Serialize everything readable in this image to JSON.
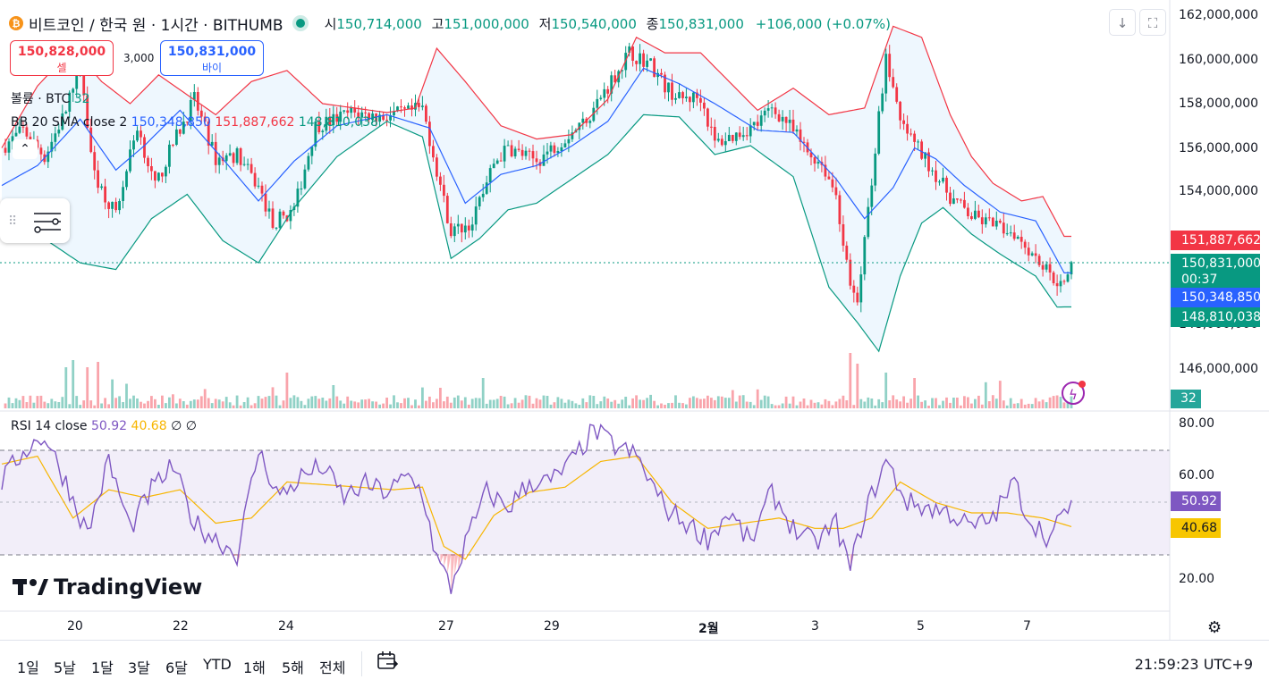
{
  "header": {
    "coin_icon": "bitcoin-icon",
    "title": "비트코인 / 한국 원 · 1시간 · BITHUMB",
    "open_label": "시",
    "open": "150,714,000",
    "high_label": "고",
    "high": "151,000,000",
    "low_label": "저",
    "low": "150,540,000",
    "close_label": "종",
    "close": "150,831,000",
    "change": "+106,000 (+0.07%)"
  },
  "trade": {
    "sell_price": "150,828,000",
    "sell_label": "셀",
    "buy_price": "150,831,000",
    "buy_label": "바이",
    "spread": "3,000"
  },
  "legend": {
    "volume_label": "볼륨 · BTC",
    "volume_value": "32",
    "bb_label": "BB 20 SMA close 2",
    "bb_basis": "150,348,850",
    "bb_upper": "151,887,662",
    "bb_lower": "148,810,038",
    "rsi_label": "RSI 14 close",
    "rsi_value": "50.92",
    "rsi_ma": "40.68",
    "rsi_e1": "∅",
    "rsi_e2": "∅"
  },
  "price_axis": {
    "labels": [
      "162,000,000",
      "160,000,000",
      "158,000,000",
      "156,000,000",
      "154,000,000",
      "146,000,000"
    ],
    "partial": "148,000,000"
  },
  "price_tags": {
    "upper": "151,887,662",
    "last": "150,831,000",
    "countdown": "00:37",
    "basis": "150,348,850",
    "lower": "148,810,038",
    "volume": "32"
  },
  "rsi_axis": {
    "labels": [
      "80.00",
      "60.00",
      "20.00"
    ],
    "value": "50.92",
    "ma": "40.68"
  },
  "time_axis": [
    "20",
    "22",
    "24",
    "27",
    "29",
    "2월",
    "3",
    "5",
    "7"
  ],
  "logo": "TradingView",
  "toolbar": {
    "ranges": [
      "1일",
      "5날",
      "1달",
      "3달",
      "6달",
      "YTD",
      "1해",
      "5해",
      "전체"
    ],
    "clock": "21:59:23 UTC+9"
  },
  "colors": {
    "up": "#089981",
    "down": "#f23645",
    "basis": "#2962ff",
    "rsi": "#7e57c2",
    "rsi_ma": "#f7b500"
  },
  "chart_data": {
    "type": "candlestick",
    "symbol": "BTC/KRW",
    "interval": "1h",
    "exchange": "BITHUMB",
    "price_range": [
      144500000,
      162500000
    ],
    "rsi_range": [
      12,
      85
    ],
    "rsi_bands": [
      70,
      30
    ],
    "anchors": {
      "close": [
        [
          0,
          156000000
        ],
        [
          6,
          156800000
        ],
        [
          12,
          155600000
        ],
        [
          18,
          157700000
        ],
        [
          22,
          159500000
        ],
        [
          26,
          154700000
        ],
        [
          32,
          153000000
        ],
        [
          38,
          157000000
        ],
        [
          43,
          154200000
        ],
        [
          48,
          156200000
        ],
        [
          54,
          158200000
        ],
        [
          60,
          155500000
        ],
        [
          66,
          155700000
        ],
        [
          72,
          154200000
        ],
        [
          76,
          152600000
        ],
        [
          82,
          153200000
        ],
        [
          88,
          157000000
        ],
        [
          92,
          157200000
        ],
        [
          98,
          157600000
        ],
        [
          106,
          157400000
        ],
        [
          114,
          157600000
        ],
        [
          118,
          157800000
        ],
        [
          122,
          155000000
        ],
        [
          126,
          152200000
        ],
        [
          132,
          152600000
        ],
        [
          138,
          155300000
        ],
        [
          142,
          156000000
        ],
        [
          150,
          155400000
        ],
        [
          156,
          156200000
        ],
        [
          164,
          157300000
        ],
        [
          170,
          158800000
        ],
        [
          176,
          160300000
        ],
        [
          182,
          159800000
        ],
        [
          186,
          158800000
        ],
        [
          190,
          158200000
        ],
        [
          196,
          158300000
        ],
        [
          200,
          156200000
        ],
        [
          206,
          156600000
        ],
        [
          212,
          157100000
        ],
        [
          216,
          157800000
        ],
        [
          220,
          157200000
        ],
        [
          226,
          155800000
        ],
        [
          230,
          155300000
        ],
        [
          234,
          153900000
        ],
        [
          238,
          149600000
        ],
        [
          240,
          148900000
        ],
        [
          243,
          153200000
        ],
        [
          248,
          160200000
        ],
        [
          252,
          157100000
        ],
        [
          256,
          156200000
        ],
        [
          262,
          154800000
        ],
        [
          266,
          153800000
        ],
        [
          272,
          152900000
        ],
        [
          278,
          152500000
        ],
        [
          284,
          152200000
        ],
        [
          290,
          151100000
        ],
        [
          294,
          150300000
        ],
        [
          298,
          149700000
        ],
        [
          300,
          150831000
        ]
      ],
      "bb_upper": [
        [
          0,
          156000000
        ],
        [
          10,
          158800000
        ],
        [
          20,
          160500000
        ],
        [
          28,
          159000000
        ],
        [
          36,
          158000000
        ],
        [
          44,
          159300000
        ],
        [
          60,
          157500000
        ],
        [
          70,
          159000000
        ],
        [
          80,
          159500000
        ],
        [
          90,
          158000000
        ],
        [
          108,
          157600000
        ],
        [
          116,
          157800000
        ],
        [
          122,
          160500000
        ],
        [
          130,
          159000000
        ],
        [
          140,
          157000000
        ],
        [
          150,
          156400000
        ],
        [
          160,
          156600000
        ],
        [
          170,
          158200000
        ],
        [
          178,
          161000000
        ],
        [
          186,
          160300000
        ],
        [
          196,
          160300000
        ],
        [
          204,
          159000000
        ],
        [
          212,
          157700000
        ],
        [
          222,
          158700000
        ],
        [
          232,
          157500000
        ],
        [
          242,
          157800000
        ],
        [
          250,
          161500000
        ],
        [
          258,
          161000000
        ],
        [
          266,
          157500000
        ],
        [
          272,
          155600000
        ],
        [
          278,
          154400000
        ],
        [
          286,
          153600000
        ],
        [
          292,
          153800000
        ],
        [
          298,
          152000000
        ]
      ],
      "bb_basis": [
        [
          0,
          154300000
        ],
        [
          10,
          155200000
        ],
        [
          22,
          157300000
        ],
        [
          32,
          155000000
        ],
        [
          40,
          156100000
        ],
        [
          50,
          157700000
        ],
        [
          62,
          155500000
        ],
        [
          72,
          153600000
        ],
        [
          82,
          155400000
        ],
        [
          94,
          157000000
        ],
        [
          108,
          157500000
        ],
        [
          120,
          156900000
        ],
        [
          130,
          153500000
        ],
        [
          140,
          154800000
        ],
        [
          150,
          155200000
        ],
        [
          160,
          156100000
        ],
        [
          170,
          157200000
        ],
        [
          180,
          159600000
        ],
        [
          190,
          158900000
        ],
        [
          200,
          158000000
        ],
        [
          212,
          156800000
        ],
        [
          222,
          156700000
        ],
        [
          234,
          154600000
        ],
        [
          242,
          152800000
        ],
        [
          250,
          154200000
        ],
        [
          256,
          156000000
        ],
        [
          262,
          155500000
        ],
        [
          270,
          154300000
        ],
        [
          280,
          153100000
        ],
        [
          290,
          152700000
        ],
        [
          298,
          150348850
        ]
      ],
      "bb_lower": [
        [
          0,
          152500000
        ],
        [
          10,
          152100000
        ],
        [
          22,
          150800000
        ],
        [
          32,
          150500000
        ],
        [
          42,
          152800000
        ],
        [
          52,
          153900000
        ],
        [
          62,
          151800000
        ],
        [
          72,
          150800000
        ],
        [
          82,
          153300000
        ],
        [
          94,
          155600000
        ],
        [
          108,
          157200000
        ],
        [
          118,
          156500000
        ],
        [
          126,
          151000000
        ],
        [
          134,
          151900000
        ],
        [
          142,
          153200000
        ],
        [
          150,
          153500000
        ],
        [
          160,
          154600000
        ],
        [
          170,
          155700000
        ],
        [
          180,
          157500000
        ],
        [
          190,
          157400000
        ],
        [
          200,
          155700000
        ],
        [
          210,
          156100000
        ],
        [
          222,
          154700000
        ],
        [
          232,
          149700000
        ],
        [
          240,
          148100000
        ],
        [
          246,
          146800000
        ],
        [
          252,
          150200000
        ],
        [
          258,
          152600000
        ],
        [
          264,
          153300000
        ],
        [
          272,
          152100000
        ],
        [
          280,
          151200000
        ],
        [
          290,
          150200000
        ],
        [
          296,
          148800000
        ],
        [
          298,
          148810038
        ]
      ],
      "rsi": [
        [
          0,
          58
        ],
        [
          6,
          70
        ],
        [
          12,
          76
        ],
        [
          18,
          58
        ],
        [
          24,
          38
        ],
        [
          30,
          66
        ],
        [
          36,
          40
        ],
        [
          42,
          55
        ],
        [
          48,
          64
        ],
        [
          54,
          42
        ],
        [
          60,
          36
        ],
        [
          66,
          30
        ],
        [
          72,
          70
        ],
        [
          78,
          52
        ],
        [
          84,
          60
        ],
        [
          90,
          64
        ],
        [
          96,
          52
        ],
        [
          102,
          57
        ],
        [
          108,
          54
        ],
        [
          114,
          60
        ],
        [
          118,
          54
        ],
        [
          122,
          28
        ],
        [
          126,
          17
        ],
        [
          130,
          34
        ],
        [
          136,
          54
        ],
        [
          142,
          48
        ],
        [
          148,
          58
        ],
        [
          154,
          58
        ],
        [
          160,
          66
        ],
        [
          166,
          78
        ],
        [
          172,
          72
        ],
        [
          178,
          68
        ],
        [
          186,
          48
        ],
        [
          192,
          42
        ],
        [
          198,
          36
        ],
        [
          204,
          46
        ],
        [
          210,
          34
        ],
        [
          216,
          54
        ],
        [
          222,
          40
        ],
        [
          228,
          34
        ],
        [
          234,
          42
        ],
        [
          238,
          24
        ],
        [
          242,
          46
        ],
        [
          248,
          66
        ],
        [
          254,
          50
        ],
        [
          260,
          48
        ],
        [
          266,
          46
        ],
        [
          272,
          40
        ],
        [
          278,
          44
        ],
        [
          284,
          58
        ],
        [
          288,
          44
        ],
        [
          294,
          36
        ],
        [
          300,
          50.92
        ]
      ],
      "rsi_ma": [
        [
          0,
          65
        ],
        [
          10,
          68
        ],
        [
          20,
          44
        ],
        [
          30,
          55
        ],
        [
          40,
          52
        ],
        [
          50,
          55
        ],
        [
          60,
          42
        ],
        [
          70,
          44
        ],
        [
          80,
          58
        ],
        [
          90,
          57
        ],
        [
          100,
          56
        ],
        [
          110,
          55
        ],
        [
          118,
          56
        ],
        [
          124,
          33
        ],
        [
          130,
          28
        ],
        [
          138,
          45
        ],
        [
          148,
          54
        ],
        [
          158,
          56
        ],
        [
          168,
          66
        ],
        [
          178,
          68
        ],
        [
          188,
          50
        ],
        [
          198,
          40
        ],
        [
          208,
          42
        ],
        [
          218,
          44
        ],
        [
          228,
          40
        ],
        [
          236,
          40
        ],
        [
          244,
          44
        ],
        [
          252,
          58
        ],
        [
          262,
          50
        ],
        [
          272,
          46
        ],
        [
          282,
          46
        ],
        [
          292,
          44
        ],
        [
          300,
          40.68
        ]
      ]
    },
    "volume_spikes": [
      [
        18,
        46
      ],
      [
        20,
        54
      ],
      [
        24,
        46
      ],
      [
        27,
        52
      ],
      [
        80,
        40
      ],
      [
        135,
        34
      ],
      [
        238,
        62
      ],
      [
        240,
        50
      ],
      [
        248,
        40
      ],
      [
        256,
        34
      ]
    ]
  }
}
